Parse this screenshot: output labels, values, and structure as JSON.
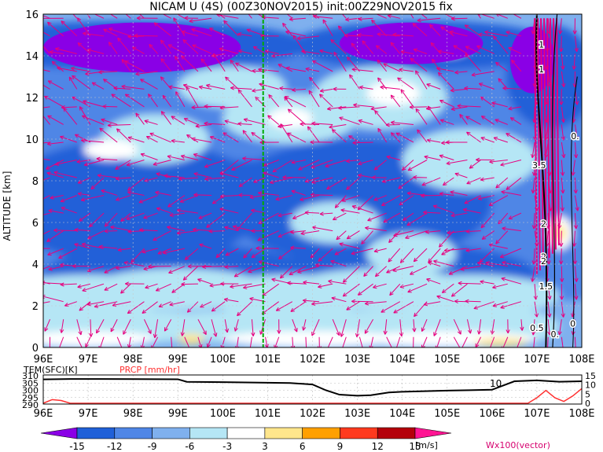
{
  "title": "NICAM U (4S) (00Z30NOV2015) init:00Z29NOV2015 fix",
  "colors": {
    "levels": [
      "#8a00e6",
      "#2060d8",
      "#4f86e6",
      "#7fb0ee",
      "#b5e6f5",
      "#ffffff",
      "#ffe68c",
      "#ffa000",
      "#ff3a1e",
      "#b4000a",
      "#ff1493"
    ],
    "vector": "#e6007e",
    "marker": "#00aa00",
    "precip": "#ff3030",
    "temp": "#000000"
  },
  "chart_data": [
    {
      "type": "heatmap",
      "title": "NICAM U (4S) (00Z30NOV2015) init:00Z29NOV2015 fix",
      "ylabel": "ALTITUDE [km]",
      "x_ticks": [
        "96E",
        "97E",
        "98E",
        "99E",
        "100E",
        "101E",
        "102E",
        "103E",
        "104E",
        "105E",
        "106E",
        "107E",
        "108E"
      ],
      "y_ticks": [
        "0",
        "2",
        "4",
        "6",
        "8",
        "10",
        "12",
        "14",
        "16"
      ],
      "xlim": [
        96,
        108
      ],
      "ylim": [
        0,
        16
      ],
      "marker_lon": 100.9,
      "contour_labels": [
        "0.",
        "0.5",
        "1.5",
        "2",
        "2",
        "3.5",
        "2",
        "1",
        "1",
        "0.",
        "0"
      ],
      "vector_label": "Wx100(vector)"
    },
    {
      "type": "line",
      "left_label": "TEM(SFC)[K]",
      "right_label": "PRCP [mm/hr]",
      "left_ticks": [
        "310",
        "305",
        "300",
        "295",
        "290"
      ],
      "right_ticks": [
        "15",
        "10",
        "5",
        "0"
      ],
      "x_ticks": [
        "96E",
        "97E",
        "98E",
        "99E",
        "100E",
        "101E",
        "102E",
        "103E",
        "104E",
        "105E",
        "106E",
        "107E",
        "108E"
      ],
      "annotation": "10",
      "series": [
        {
          "name": "TEM(SFC)[K]",
          "x": [
            96,
            96.6,
            97,
            98,
            99,
            99.2,
            100,
            101,
            101.5,
            102,
            102.3,
            102.6,
            103,
            103.3,
            103.7,
            104,
            104.5,
            105,
            105.5,
            106,
            106.5,
            107,
            107.5,
            108
          ],
          "y": [
            307.5,
            307.8,
            307.8,
            307.7,
            307.6,
            305.8,
            305.6,
            305.2,
            305.0,
            304.0,
            300.0,
            297.0,
            296.3,
            296.6,
            298.5,
            299.0,
            299.4,
            299.8,
            300.1,
            300.4,
            306.2,
            306.8,
            305.9,
            306.2
          ]
        },
        {
          "name": "PRCP [mm/hr]",
          "x": [
            96,
            96.2,
            96.4,
            96.6,
            97,
            106.8,
            107,
            107.2,
            107.4,
            107.6,
            107.8,
            108
          ],
          "y": [
            0,
            2,
            1.5,
            0,
            0,
            0,
            3,
            7,
            3,
            1,
            4,
            8
          ]
        }
      ]
    },
    {
      "type": "bar",
      "colorbar_labels": [
        "-15",
        "-12",
        "-9",
        "-6",
        "-3",
        "3",
        "6",
        "9",
        "12",
        "15"
      ],
      "unit": "[m/s]"
    }
  ]
}
